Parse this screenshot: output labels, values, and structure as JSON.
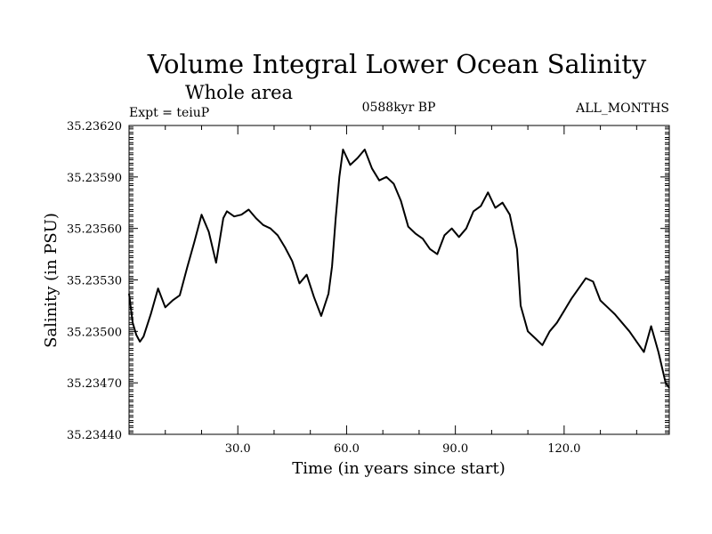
{
  "chart_data": {
    "type": "line",
    "title": "Volume Integral Lower Ocean Salinity",
    "subtitle": "Whole area",
    "experiment_label": "Expt = teiuP",
    "period_label": "0588kyr BP",
    "months_label": "ALL_MONTHS",
    "xlabel": "Time (in years since start)",
    "ylabel": "Salinity (in PSU)",
    "xlim": [
      0,
      149
    ],
    "ylim": [
      35.2344,
      35.2362
    ],
    "x_ticks": [
      30,
      60,
      90,
      120
    ],
    "x_tick_labels": [
      "30.0",
      "60.0",
      "90.0",
      "120.0"
    ],
    "y_ticks": [
      35.2344,
      35.2347,
      35.235,
      35.2353,
      35.2356,
      35.2359,
      35.2362
    ],
    "y_tick_labels": [
      "35.23440",
      "35.23470",
      "35.23500",
      "35.23530",
      "35.23560",
      "35.23590",
      "35.23620"
    ],
    "grid": false,
    "series": [
      {
        "name": "Salinity",
        "color": "#000000",
        "x": [
          0,
          1,
          2,
          3,
          4,
          6,
          8,
          10,
          12,
          14,
          16,
          18,
          20,
          22,
          24,
          26,
          27,
          29,
          31,
          33,
          35,
          37,
          39,
          41,
          43,
          45,
          47,
          49,
          51,
          53,
          55,
          56,
          57,
          58,
          59,
          61,
          63,
          65,
          67,
          69,
          71,
          73,
          75,
          77,
          79,
          81,
          83,
          85,
          87,
          89,
          91,
          93,
          95,
          97,
          99,
          101,
          103,
          105,
          107,
          108,
          110,
          112,
          114,
          116,
          118,
          120,
          122,
          124,
          126,
          128,
          130,
          132,
          134,
          136,
          138,
          140,
          142,
          144,
          146,
          148,
          149
        ],
        "values": [
          35.23522,
          35.23505,
          35.23498,
          35.23494,
          35.23497,
          35.2351,
          35.23525,
          35.23514,
          35.23518,
          35.23521,
          35.23537,
          35.23552,
          35.23568,
          35.23558,
          35.2354,
          35.23566,
          35.2357,
          35.23567,
          35.23568,
          35.23571,
          35.23566,
          35.23562,
          35.2356,
          35.23556,
          35.23549,
          35.23541,
          35.23528,
          35.23533,
          35.2352,
          35.23509,
          35.23522,
          35.23538,
          35.23566,
          35.2359,
          35.23606,
          35.23597,
          35.23601,
          35.23606,
          35.23595,
          35.23588,
          35.2359,
          35.23586,
          35.23576,
          35.23561,
          35.23557,
          35.23554,
          35.23548,
          35.23545,
          35.23556,
          35.2356,
          35.23555,
          35.2356,
          35.2357,
          35.23573,
          35.23581,
          35.23572,
          35.23575,
          35.23568,
          35.23548,
          35.23515,
          35.235,
          35.23496,
          35.23492,
          35.235,
          35.23505,
          35.23512,
          35.23519,
          35.23525,
          35.23531,
          35.23529,
          35.23518,
          35.23514,
          35.2351,
          35.23505,
          35.235,
          35.23494,
          35.23488,
          35.23503,
          35.23488,
          35.2347,
          35.23467
        ]
      }
    ]
  }
}
